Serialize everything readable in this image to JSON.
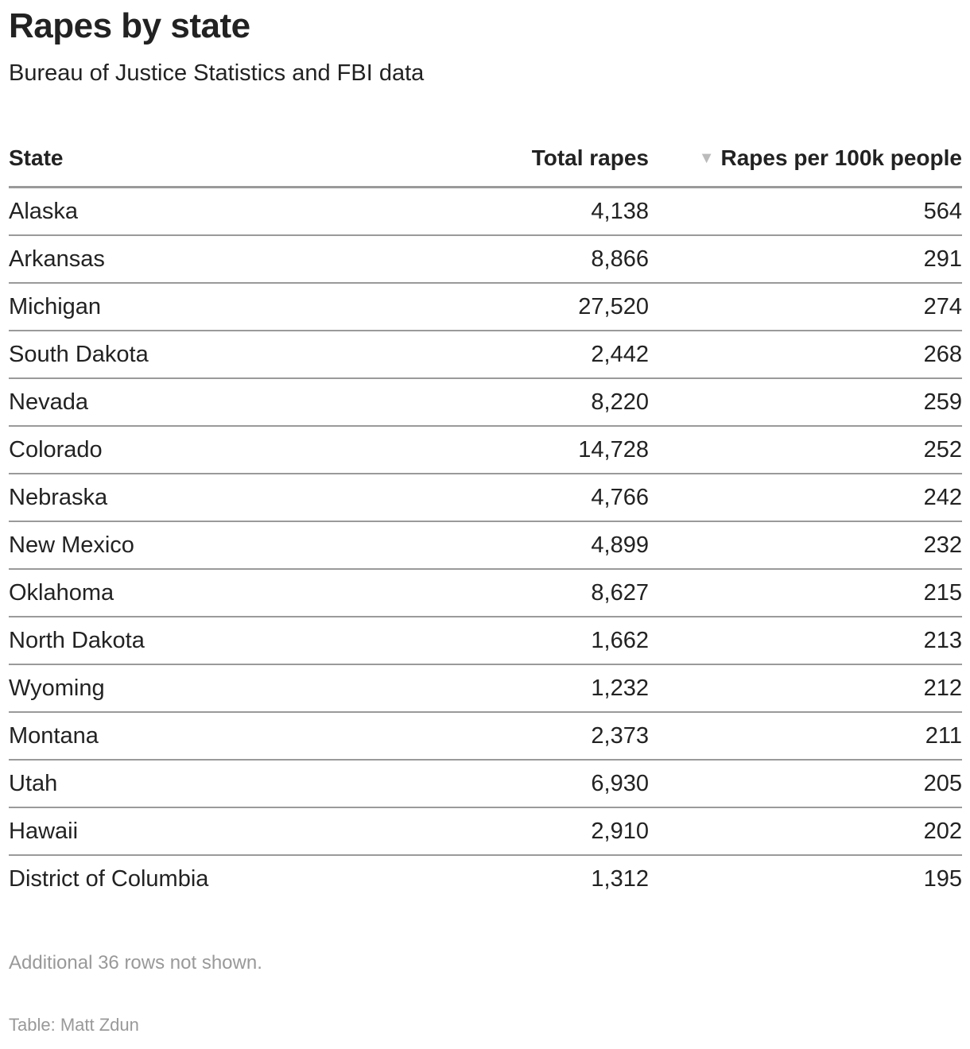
{
  "header": {
    "title": "Rapes by state",
    "subtitle": "Bureau of Justice Statistics and FBI data"
  },
  "table": {
    "columns": [
      {
        "label": "State",
        "align": "left"
      },
      {
        "label": "Total rapes",
        "align": "right"
      },
      {
        "label": "Rapes per 100k people",
        "align": "right",
        "sorted": "descending",
        "sort_icon": "▼"
      }
    ],
    "rows": [
      {
        "state": "Alaska",
        "total": "4,138",
        "rate": "564"
      },
      {
        "state": "Arkansas",
        "total": "8,866",
        "rate": "291"
      },
      {
        "state": "Michigan",
        "total": "27,520",
        "rate": "274"
      },
      {
        "state": "South Dakota",
        "total": "2,442",
        "rate": "268"
      },
      {
        "state": "Nevada",
        "total": "8,220",
        "rate": "259"
      },
      {
        "state": "Colorado",
        "total": "14,728",
        "rate": "252"
      },
      {
        "state": "Nebraska",
        "total": "4,766",
        "rate": "242"
      },
      {
        "state": "New Mexico",
        "total": "4,899",
        "rate": "232"
      },
      {
        "state": "Oklahoma",
        "total": "8,627",
        "rate": "215"
      },
      {
        "state": "North Dakota",
        "total": "1,662",
        "rate": "213"
      },
      {
        "state": "Wyoming",
        "total": "1,232",
        "rate": "212"
      },
      {
        "state": "Montana",
        "total": "2,373",
        "rate": "211"
      },
      {
        "state": "Utah",
        "total": "6,930",
        "rate": "205"
      },
      {
        "state": "Hawaii",
        "total": "2,910",
        "rate": "202"
      },
      {
        "state": "District of Columbia",
        "total": "1,312",
        "rate": "195"
      }
    ]
  },
  "footer": {
    "note": "Additional 36 rows not shown.",
    "credit": "Table: Matt Zdun"
  },
  "colors": {
    "text": "#222222",
    "muted": "#999999",
    "rule": "#9a9a9a",
    "sort_icon": "#bbbbbb"
  },
  "chart_data": {
    "type": "table",
    "title": "Rapes by state",
    "subtitle": "Bureau of Justice Statistics and FBI data",
    "columns": [
      "State",
      "Total rapes",
      "Rapes per 100k people"
    ],
    "sorted_by": "Rapes per 100k people",
    "sort_order": "descending",
    "rows": [
      [
        "Alaska",
        4138,
        564
      ],
      [
        "Arkansas",
        8866,
        291
      ],
      [
        "Michigan",
        27520,
        274
      ],
      [
        "South Dakota",
        2442,
        268
      ],
      [
        "Nevada",
        8220,
        259
      ],
      [
        "Colorado",
        14728,
        252
      ],
      [
        "Nebraska",
        4766,
        242
      ],
      [
        "New Mexico",
        4899,
        232
      ],
      [
        "Oklahoma",
        8627,
        215
      ],
      [
        "North Dakota",
        1662,
        213
      ],
      [
        "Wyoming",
        1232,
        212
      ],
      [
        "Montana",
        2373,
        211
      ],
      [
        "Utah",
        6930,
        205
      ],
      [
        "Hawaii",
        2910,
        202
      ],
      [
        "District of Columbia",
        1312,
        195
      ]
    ],
    "notes": "Additional 36 rows not shown.",
    "credit": "Table: Matt Zdun"
  }
}
